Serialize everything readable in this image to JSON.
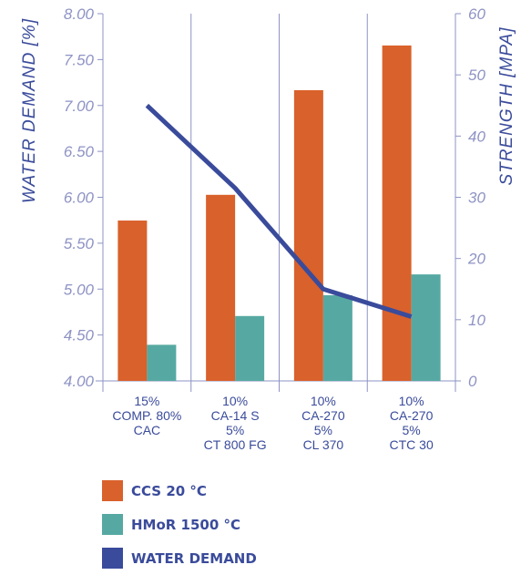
{
  "chart_data": {
    "type": "bar",
    "categories": [
      [
        "15%",
        "COMP. 80%",
        "CAC"
      ],
      [
        "10%",
        "CA-14 S",
        "5%",
        "CT 800 FG"
      ],
      [
        "10%",
        "CA-270",
        "5%",
        "CL 370"
      ],
      [
        "10%",
        "CA-270",
        "5%",
        "CTC 30"
      ]
    ],
    "series": [
      {
        "name": "CCS 20 °C",
        "type": "bar",
        "axis": "right",
        "color": "#d9612b",
        "values": [
          26.2,
          30.4,
          47.5,
          54.8
        ]
      },
      {
        "name": "HMoR 1500 °C",
        "type": "bar",
        "axis": "right",
        "color": "#56a9a2",
        "values": [
          5.9,
          10.6,
          14.0,
          17.4
        ]
      },
      {
        "name": "WATER DEMAND",
        "type": "line",
        "axis": "left",
        "color": "#3a4b9b",
        "values": [
          7.0,
          6.1,
          5.0,
          4.7
        ]
      }
    ],
    "ylabel": "WATER DEMAND [%]",
    "y2label": "STRENGTH [MPA]",
    "ylim": [
      4.0,
      8.0
    ],
    "y2lim": [
      0,
      60
    ],
    "yticks": [
      "4.00",
      "4.50",
      "5.00",
      "5.50",
      "6.00",
      "6.50",
      "7.00",
      "7.50",
      "8.00"
    ],
    "y2ticks": [
      "0",
      "10",
      "20",
      "30",
      "40",
      "50",
      "60"
    ],
    "grid": "vertical",
    "legend_position": "bottom-left",
    "axis_color": "#8e93c4",
    "axis_title_color": "#3a4b9b"
  },
  "legend": {
    "items": [
      {
        "label": "CCS 20 °C",
        "color": "#d9612b"
      },
      {
        "label": "HMoR 1500 °C",
        "color": "#56a9a2"
      },
      {
        "label": "WATER DEMAND",
        "color": "#3a4b9b"
      }
    ]
  }
}
